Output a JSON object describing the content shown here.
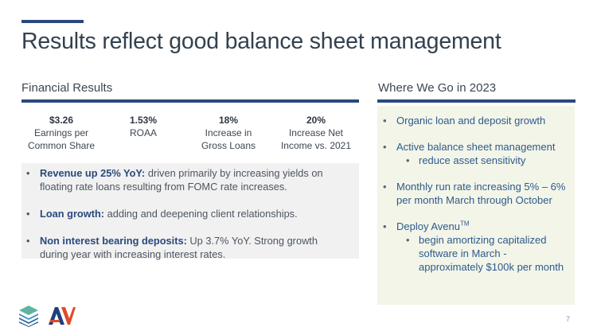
{
  "title": "Results reflect good balance sheet management",
  "left_section": {
    "heading": "Financial Results",
    "metrics": [
      {
        "value": "$3.26",
        "label_lines": [
          "Earnings per",
          "Common Share"
        ]
      },
      {
        "value": "1.53%",
        "label_lines": [
          "ROAA"
        ]
      },
      {
        "value": "18%",
        "label_lines": [
          "Increase in",
          "Gross Loans"
        ]
      },
      {
        "value": "20%",
        "label_lines": [
          "Increase Net",
          "Income vs. 2021"
        ]
      }
    ],
    "bullets": [
      {
        "head": "Revenue up 25% YoY:",
        "text": " driven primarily by increasing yields on floating rate loans resulting from FOMC rate increases."
      },
      {
        "head": "Loan growth:",
        "text": " adding and deepening client relationships."
      },
      {
        "head": "Non interest bearing deposits:",
        "text": " Up 3.7% YoY. Strong growth during year with increasing interest rates."
      }
    ]
  },
  "right_section": {
    "heading": "Where We Go in 2023",
    "bullets": [
      {
        "text": "Organic loan and deposit growth"
      },
      {
        "text": "Active balance sheet management",
        "sub": [
          "reduce asset sensitivity"
        ]
      },
      {
        "text": "Monthly run rate increasing 5% – 6% per month March through October"
      },
      {
        "text": "Deploy Avenu",
        "sup": "TM",
        "sub": [
          "begin amortizing capitalized software in March - approximately $100k per month"
        ]
      }
    ]
  },
  "bullet_glyph": "•",
  "logos": {
    "left": "layers-logo-icon",
    "right": "av-logo-icon"
  },
  "page_number": "7",
  "colors": {
    "accent_navy": "#2a4a7c",
    "blue_text": "#2f5a8c",
    "gray_box": "#f1f1f1",
    "green_box": "#f2f5e8"
  }
}
